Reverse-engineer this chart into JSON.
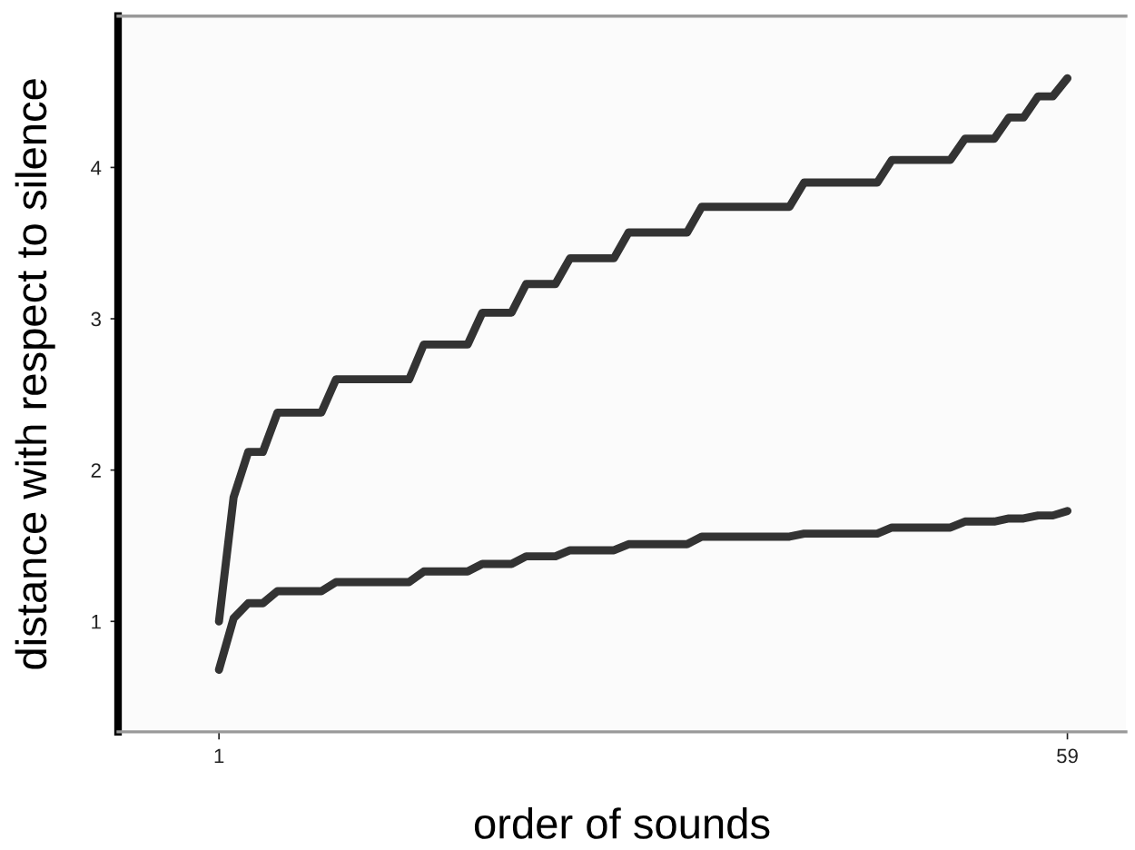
{
  "chart_data": {
    "type": "line",
    "xlabel": "order of sounds",
    "ylabel": "distance with respect to silence",
    "x": [
      1,
      2,
      3,
      4,
      5,
      8,
      9,
      14,
      15,
      18,
      19,
      21,
      22,
      24,
      25,
      28,
      29,
      33,
      34,
      40,
      41,
      46,
      47,
      51,
      52,
      54,
      55,
      56,
      57,
      58,
      59
    ],
    "series": [
      {
        "color": "#333333",
        "values": [
          1.0,
          1.82,
          2.12,
          2.12,
          2.38,
          2.38,
          2.6,
          2.6,
          2.83,
          2.83,
          3.04,
          3.04,
          3.23,
          3.23,
          3.4,
          3.4,
          3.57,
          3.57,
          3.74,
          3.74,
          3.9,
          3.9,
          4.05,
          4.05,
          4.19,
          4.19,
          4.33,
          4.33,
          4.47,
          4.47,
          4.59
        ]
      },
      {
        "color": "#333333",
        "values": [
          0.68,
          1.02,
          1.12,
          1.12,
          1.2,
          1.2,
          1.26,
          1.26,
          1.33,
          1.33,
          1.38,
          1.38,
          1.43,
          1.43,
          1.47,
          1.47,
          1.51,
          1.51,
          1.56,
          1.56,
          1.58,
          1.58,
          1.62,
          1.62,
          1.66,
          1.66,
          1.68,
          1.68,
          1.7,
          1.7,
          1.73
        ]
      }
    ],
    "xlim": [
      -5.9,
      63
    ],
    "ylim": [
      0.27,
      5.0
    ],
    "xticks": [
      1,
      59
    ],
    "yticks": [
      1,
      2,
      3,
      4
    ],
    "grid": false,
    "legend": false,
    "marker": "none",
    "line_style": "solid"
  }
}
